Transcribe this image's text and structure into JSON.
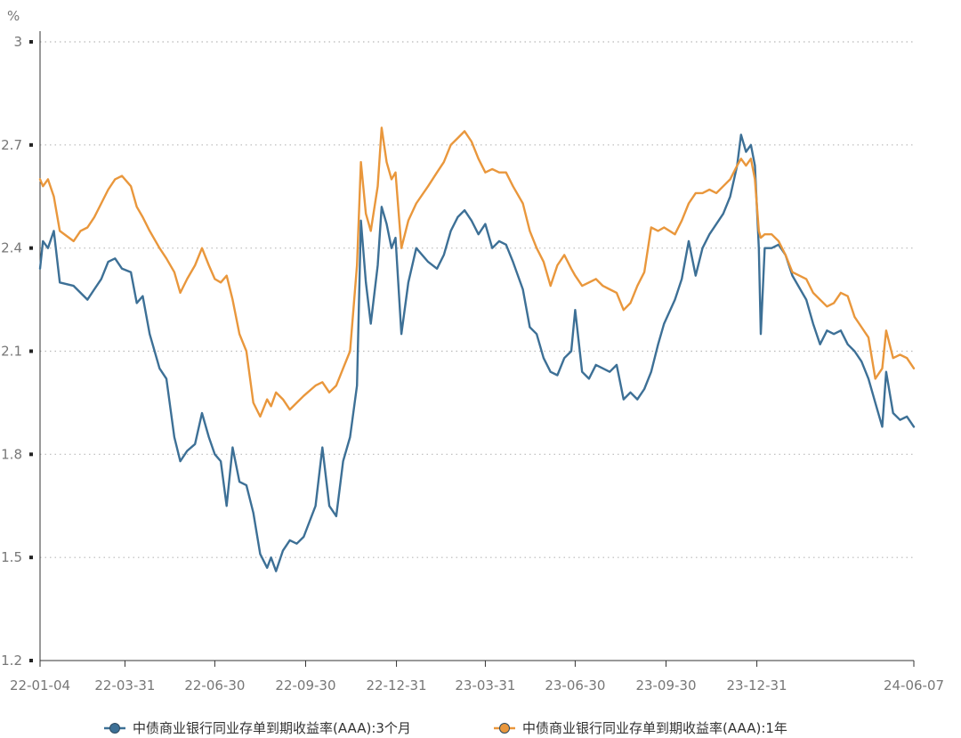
{
  "chart_data": {
    "type": "line",
    "y_unit": "%",
    "ylim": [
      1.2,
      3.0
    ],
    "y_ticks": [
      "3",
      "2.7",
      "2.4",
      "2.1",
      "1.8",
      "1.5",
      "1.2"
    ],
    "x_range": [
      "2022-01-04",
      "2024-06-07"
    ],
    "x_ticks": [
      {
        "date": "2022-01-04",
        "label": "22-01-04"
      },
      {
        "date": "2022-03-31",
        "label": "22-03-31"
      },
      {
        "date": "2022-06-30",
        "label": "22-06-30"
      },
      {
        "date": "2022-09-30",
        "label": "22-09-30"
      },
      {
        "date": "2022-12-31",
        "label": "22-12-31"
      },
      {
        "date": "2023-03-31",
        "label": "23-03-31"
      },
      {
        "date": "2023-06-30",
        "label": "23-06-30"
      },
      {
        "date": "2023-09-30",
        "label": "23-09-30"
      },
      {
        "date": "2023-12-31",
        "label": "23-12-31"
      },
      {
        "date": "2024-06-07",
        "label": "24-06-07"
      }
    ],
    "grid": "horizontal dotted",
    "legend_position": "bottom",
    "series": [
      {
        "name": "中债商业银行同业存单到期收益率(AAA):3个月",
        "color": "#3d7096",
        "points": [
          [
            "2022-01-04",
            2.34
          ],
          [
            "2022-01-07",
            2.42
          ],
          [
            "2022-01-12",
            2.4
          ],
          [
            "2022-01-18",
            2.45
          ],
          [
            "2022-01-24",
            2.3
          ],
          [
            "2022-02-07",
            2.29
          ],
          [
            "2022-02-14",
            2.27
          ],
          [
            "2022-02-21",
            2.25
          ],
          [
            "2022-02-28",
            2.28
          ],
          [
            "2022-03-07",
            2.31
          ],
          [
            "2022-03-14",
            2.36
          ],
          [
            "2022-03-21",
            2.37
          ],
          [
            "2022-03-28",
            2.34
          ],
          [
            "2022-04-06",
            2.33
          ],
          [
            "2022-04-12",
            2.24
          ],
          [
            "2022-04-18",
            2.26
          ],
          [
            "2022-04-25",
            2.15
          ],
          [
            "2022-05-05",
            2.05
          ],
          [
            "2022-05-12",
            2.02
          ],
          [
            "2022-05-20",
            1.85
          ],
          [
            "2022-05-26",
            1.78
          ],
          [
            "2022-06-02",
            1.81
          ],
          [
            "2022-06-10",
            1.83
          ],
          [
            "2022-06-17",
            1.92
          ],
          [
            "2022-06-24",
            1.85
          ],
          [
            "2022-06-30",
            1.8
          ],
          [
            "2022-07-06",
            1.78
          ],
          [
            "2022-07-12",
            1.65
          ],
          [
            "2022-07-18",
            1.82
          ],
          [
            "2022-07-25",
            1.72
          ],
          [
            "2022-08-01",
            1.71
          ],
          [
            "2022-08-08",
            1.63
          ],
          [
            "2022-08-15",
            1.51
          ],
          [
            "2022-08-22",
            1.47
          ],
          [
            "2022-08-26",
            1.5
          ],
          [
            "2022-08-31",
            1.46
          ],
          [
            "2022-09-07",
            1.52
          ],
          [
            "2022-09-14",
            1.55
          ],
          [
            "2022-09-21",
            1.54
          ],
          [
            "2022-09-28",
            1.56
          ],
          [
            "2022-10-10",
            1.65
          ],
          [
            "2022-10-17",
            1.82
          ],
          [
            "2022-10-24",
            1.65
          ],
          [
            "2022-10-31",
            1.62
          ],
          [
            "2022-11-07",
            1.78
          ],
          [
            "2022-11-14",
            1.85
          ],
          [
            "2022-11-21",
            2.0
          ],
          [
            "2022-11-25",
            2.48
          ],
          [
            "2022-11-30",
            2.3
          ],
          [
            "2022-12-05",
            2.18
          ],
          [
            "2022-12-12",
            2.35
          ],
          [
            "2022-12-16",
            2.52
          ],
          [
            "2022-12-21",
            2.47
          ],
          [
            "2022-12-26",
            2.4
          ],
          [
            "2022-12-30",
            2.43
          ],
          [
            "2023-01-05",
            2.15
          ],
          [
            "2023-01-12",
            2.3
          ],
          [
            "2023-01-20",
            2.4
          ],
          [
            "2023-02-01",
            2.36
          ],
          [
            "2023-02-10",
            2.34
          ],
          [
            "2023-02-17",
            2.38
          ],
          [
            "2023-02-24",
            2.45
          ],
          [
            "2023-03-03",
            2.49
          ],
          [
            "2023-03-10",
            2.51
          ],
          [
            "2023-03-17",
            2.48
          ],
          [
            "2023-03-24",
            2.44
          ],
          [
            "2023-03-31",
            2.47
          ],
          [
            "2023-04-07",
            2.4
          ],
          [
            "2023-04-14",
            2.42
          ],
          [
            "2023-04-21",
            2.41
          ],
          [
            "2023-04-28",
            2.36
          ],
          [
            "2023-05-08",
            2.28
          ],
          [
            "2023-05-15",
            2.17
          ],
          [
            "2023-05-22",
            2.15
          ],
          [
            "2023-05-29",
            2.08
          ],
          [
            "2023-06-05",
            2.04
          ],
          [
            "2023-06-12",
            2.03
          ],
          [
            "2023-06-19",
            2.08
          ],
          [
            "2023-06-26",
            2.1
          ],
          [
            "2023-06-30",
            2.22
          ],
          [
            "2023-07-07",
            2.04
          ],
          [
            "2023-07-14",
            2.02
          ],
          [
            "2023-07-21",
            2.06
          ],
          [
            "2023-07-28",
            2.05
          ],
          [
            "2023-08-04",
            2.04
          ],
          [
            "2023-08-11",
            2.06
          ],
          [
            "2023-08-18",
            1.96
          ],
          [
            "2023-08-25",
            1.98
          ],
          [
            "2023-09-01",
            1.96
          ],
          [
            "2023-09-08",
            1.99
          ],
          [
            "2023-09-15",
            2.04
          ],
          [
            "2023-09-22",
            2.12
          ],
          [
            "2023-09-28",
            2.18
          ],
          [
            "2023-10-09",
            2.25
          ],
          [
            "2023-10-16",
            2.31
          ],
          [
            "2023-10-23",
            2.42
          ],
          [
            "2023-10-30",
            2.32
          ],
          [
            "2023-11-06",
            2.4
          ],
          [
            "2023-11-13",
            2.44
          ],
          [
            "2023-11-20",
            2.47
          ],
          [
            "2023-11-27",
            2.5
          ],
          [
            "2023-12-04",
            2.55
          ],
          [
            "2023-12-11",
            2.64
          ],
          [
            "2023-12-15",
            2.73
          ],
          [
            "2023-12-20",
            2.68
          ],
          [
            "2023-12-25",
            2.7
          ],
          [
            "2023-12-29",
            2.64
          ],
          [
            "2024-01-02",
            2.4
          ],
          [
            "2024-01-04",
            2.15
          ],
          [
            "2024-01-08",
            2.4
          ],
          [
            "2024-01-15",
            2.4
          ],
          [
            "2024-01-22",
            2.41
          ],
          [
            "2024-01-29",
            2.38
          ],
          [
            "2024-02-05",
            2.32
          ],
          [
            "2024-02-19",
            2.25
          ],
          [
            "2024-02-26",
            2.18
          ],
          [
            "2024-03-04",
            2.12
          ],
          [
            "2024-03-11",
            2.16
          ],
          [
            "2024-03-18",
            2.15
          ],
          [
            "2024-03-25",
            2.16
          ],
          [
            "2024-04-01",
            2.12
          ],
          [
            "2024-04-08",
            2.1
          ],
          [
            "2024-04-15",
            2.07
          ],
          [
            "2024-04-22",
            2.02
          ],
          [
            "2024-04-29",
            1.95
          ],
          [
            "2024-05-06",
            1.88
          ],
          [
            "2024-05-10",
            2.04
          ],
          [
            "2024-05-17",
            1.92
          ],
          [
            "2024-05-24",
            1.9
          ],
          [
            "2024-05-31",
            1.91
          ],
          [
            "2024-06-07",
            1.88
          ]
        ]
      },
      {
        "name": "中债商业银行同业存单到期收益率(AAA):1年",
        "color": "#e9973c",
        "points": [
          [
            "2022-01-04",
            2.6
          ],
          [
            "2022-01-07",
            2.58
          ],
          [
            "2022-01-12",
            2.6
          ],
          [
            "2022-01-18",
            2.55
          ],
          [
            "2022-01-24",
            2.45
          ],
          [
            "2022-02-07",
            2.42
          ],
          [
            "2022-02-14",
            2.45
          ],
          [
            "2022-02-21",
            2.46
          ],
          [
            "2022-02-28",
            2.49
          ],
          [
            "2022-03-07",
            2.53
          ],
          [
            "2022-03-14",
            2.57
          ],
          [
            "2022-03-21",
            2.6
          ],
          [
            "2022-03-28",
            2.61
          ],
          [
            "2022-04-06",
            2.58
          ],
          [
            "2022-04-12",
            2.52
          ],
          [
            "2022-04-18",
            2.49
          ],
          [
            "2022-04-25",
            2.45
          ],
          [
            "2022-05-05",
            2.4
          ],
          [
            "2022-05-12",
            2.37
          ],
          [
            "2022-05-20",
            2.33
          ],
          [
            "2022-05-26",
            2.27
          ],
          [
            "2022-06-02",
            2.31
          ],
          [
            "2022-06-10",
            2.35
          ],
          [
            "2022-06-17",
            2.4
          ],
          [
            "2022-06-24",
            2.35
          ],
          [
            "2022-06-30",
            2.31
          ],
          [
            "2022-07-06",
            2.3
          ],
          [
            "2022-07-12",
            2.32
          ],
          [
            "2022-07-18",
            2.25
          ],
          [
            "2022-07-25",
            2.15
          ],
          [
            "2022-08-01",
            2.1
          ],
          [
            "2022-08-08",
            1.95
          ],
          [
            "2022-08-15",
            1.91
          ],
          [
            "2022-08-22",
            1.96
          ],
          [
            "2022-08-26",
            1.94
          ],
          [
            "2022-08-31",
            1.98
          ],
          [
            "2022-09-07",
            1.96
          ],
          [
            "2022-09-14",
            1.93
          ],
          [
            "2022-09-21",
            1.95
          ],
          [
            "2022-09-28",
            1.97
          ],
          [
            "2022-10-10",
            2.0
          ],
          [
            "2022-10-17",
            2.01
          ],
          [
            "2022-10-24",
            1.98
          ],
          [
            "2022-10-31",
            2.0
          ],
          [
            "2022-11-07",
            2.05
          ],
          [
            "2022-11-14",
            2.1
          ],
          [
            "2022-11-21",
            2.35
          ],
          [
            "2022-11-25",
            2.65
          ],
          [
            "2022-11-30",
            2.5
          ],
          [
            "2022-12-05",
            2.45
          ],
          [
            "2022-12-12",
            2.58
          ],
          [
            "2022-12-16",
            2.75
          ],
          [
            "2022-12-21",
            2.65
          ],
          [
            "2022-12-26",
            2.6
          ],
          [
            "2022-12-30",
            2.62
          ],
          [
            "2023-01-05",
            2.4
          ],
          [
            "2023-01-12",
            2.48
          ],
          [
            "2023-01-20",
            2.53
          ],
          [
            "2023-02-01",
            2.58
          ],
          [
            "2023-02-10",
            2.62
          ],
          [
            "2023-02-17",
            2.65
          ],
          [
            "2023-02-24",
            2.7
          ],
          [
            "2023-03-03",
            2.72
          ],
          [
            "2023-03-10",
            2.74
          ],
          [
            "2023-03-17",
            2.71
          ],
          [
            "2023-03-24",
            2.66
          ],
          [
            "2023-03-31",
            2.62
          ],
          [
            "2023-04-07",
            2.63
          ],
          [
            "2023-04-14",
            2.62
          ],
          [
            "2023-04-21",
            2.62
          ],
          [
            "2023-04-28",
            2.58
          ],
          [
            "2023-05-08",
            2.53
          ],
          [
            "2023-05-15",
            2.45
          ],
          [
            "2023-05-22",
            2.4
          ],
          [
            "2023-05-29",
            2.36
          ],
          [
            "2023-06-05",
            2.29
          ],
          [
            "2023-06-12",
            2.35
          ],
          [
            "2023-06-19",
            2.38
          ],
          [
            "2023-06-26",
            2.34
          ],
          [
            "2023-06-30",
            2.32
          ],
          [
            "2023-07-07",
            2.29
          ],
          [
            "2023-07-14",
            2.3
          ],
          [
            "2023-07-21",
            2.31
          ],
          [
            "2023-07-28",
            2.29
          ],
          [
            "2023-08-04",
            2.28
          ],
          [
            "2023-08-11",
            2.27
          ],
          [
            "2023-08-18",
            2.22
          ],
          [
            "2023-08-25",
            2.24
          ],
          [
            "2023-09-01",
            2.29
          ],
          [
            "2023-09-08",
            2.33
          ],
          [
            "2023-09-15",
            2.46
          ],
          [
            "2023-09-22",
            2.45
          ],
          [
            "2023-09-28",
            2.46
          ],
          [
            "2023-10-09",
            2.44
          ],
          [
            "2023-10-16",
            2.48
          ],
          [
            "2023-10-23",
            2.53
          ],
          [
            "2023-10-30",
            2.56
          ],
          [
            "2023-11-06",
            2.56
          ],
          [
            "2023-11-13",
            2.57
          ],
          [
            "2023-11-20",
            2.56
          ],
          [
            "2023-11-27",
            2.58
          ],
          [
            "2023-12-04",
            2.6
          ],
          [
            "2023-12-11",
            2.64
          ],
          [
            "2023-12-15",
            2.66
          ],
          [
            "2023-12-20",
            2.64
          ],
          [
            "2023-12-25",
            2.66
          ],
          [
            "2023-12-29",
            2.6
          ],
          [
            "2024-01-02",
            2.45
          ],
          [
            "2024-01-04",
            2.43
          ],
          [
            "2024-01-08",
            2.44
          ],
          [
            "2024-01-15",
            2.44
          ],
          [
            "2024-01-22",
            2.42
          ],
          [
            "2024-01-29",
            2.38
          ],
          [
            "2024-02-05",
            2.33
          ],
          [
            "2024-02-19",
            2.31
          ],
          [
            "2024-02-26",
            2.27
          ],
          [
            "2024-03-04",
            2.25
          ],
          [
            "2024-03-11",
            2.23
          ],
          [
            "2024-03-18",
            2.24
          ],
          [
            "2024-03-25",
            2.27
          ],
          [
            "2024-04-01",
            2.26
          ],
          [
            "2024-04-08",
            2.2
          ],
          [
            "2024-04-15",
            2.17
          ],
          [
            "2024-04-22",
            2.14
          ],
          [
            "2024-04-29",
            2.02
          ],
          [
            "2024-05-06",
            2.05
          ],
          [
            "2024-05-10",
            2.16
          ],
          [
            "2024-05-17",
            2.08
          ],
          [
            "2024-05-24",
            2.09
          ],
          [
            "2024-05-31",
            2.08
          ],
          [
            "2024-06-07",
            2.05
          ]
        ]
      }
    ]
  }
}
